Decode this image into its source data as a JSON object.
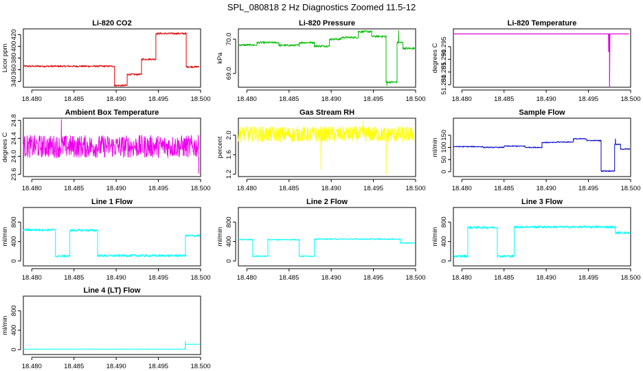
{
  "title": "SPL_080818  2 Hz Diagnostics Zoomed 11.5-12",
  "chart_data": [
    {
      "id": "co2",
      "type": "line",
      "title": "Li-820 CO2",
      "ylabel": "Licor ppm",
      "color": "#dd0000",
      "xlim": [
        18.479,
        18.5
      ],
      "ylim": [
        330,
        430
      ],
      "xticks": [
        "18.480",
        "18.485",
        "18.490",
        "18.495",
        "18.500"
      ],
      "yticks": [
        {
          "v": 340,
          "label": "340"
        },
        {
          "v": 360,
          "label": "360"
        },
        {
          "v": 380,
          "label": "380"
        },
        {
          "v": 400,
          "label": "400"
        },
        {
          "v": 420,
          "label": "420"
        }
      ],
      "noise": 1.5,
      "segments": [
        [
          18.479,
          18.4898,
          366
        ],
        [
          18.4898,
          18.4913,
          333
        ],
        [
          18.4913,
          18.493,
          352
        ],
        [
          18.493,
          18.4947,
          378
        ],
        [
          18.4947,
          18.4983,
          422
        ],
        [
          18.4983,
          18.4998,
          365
        ]
      ],
      "spikes": []
    },
    {
      "id": "pressure",
      "type": "line",
      "title": "Li-820 Pressure",
      "ylabel": "kPa",
      "color": "#00bb00",
      "xlim": [
        18.479,
        18.5
      ],
      "ylim": [
        68.6,
        70.3
      ],
      "xticks": [
        "18.480",
        "18.485",
        "18.490",
        "18.495",
        "18.500"
      ],
      "yticks": [
        {
          "v": 69.0,
          "label": "69.0"
        },
        {
          "v": 70.0,
          "label": "70.0"
        }
      ],
      "noise": 0.03,
      "segments": [
        [
          18.479,
          18.4812,
          69.83
        ],
        [
          18.4812,
          18.4838,
          69.9
        ],
        [
          18.4838,
          18.4862,
          69.82
        ],
        [
          18.4862,
          18.488,
          69.9
        ],
        [
          18.488,
          18.4898,
          69.8
        ],
        [
          18.4898,
          18.4912,
          70.0
        ],
        [
          18.4912,
          18.4932,
          70.05
        ],
        [
          18.4932,
          18.4948,
          70.22
        ],
        [
          18.4948,
          18.4965,
          70.08
        ],
        [
          18.4965,
          18.4978,
          68.75
        ],
        [
          18.4978,
          18.4985,
          69.9
        ],
        [
          18.4985,
          18.4999,
          69.73
        ]
      ],
      "spikes": [
        [
          18.4966,
          68.65
        ],
        [
          18.498,
          70.25
        ]
      ]
    },
    {
      "id": "temp",
      "type": "line",
      "title": "Li-820 Temperature",
      "ylabel": "degrees C",
      "color": "#dd00dd",
      "xlim": [
        18.479,
        18.5
      ],
      "ylim": [
        51.279,
        51.302
      ],
      "xticks": [
        "18.480",
        "18.485",
        "18.490",
        "18.495",
        "18.500"
      ],
      "yticks": [
        {
          "v": 51.28,
          "label": "51.280"
        },
        {
          "v": 51.285,
          "label": "51.285"
        },
        {
          "v": 51.29,
          "label": "51.290"
        },
        {
          "v": 51.295,
          "label": "51.295"
        }
      ],
      "noise": 0.0,
      "segments": [
        [
          18.479,
          18.4998,
          51.3
        ]
      ],
      "spikes": [
        [
          18.4974,
          51.293
        ],
        [
          18.4975,
          51.279
        ]
      ]
    },
    {
      "id": "ambient",
      "type": "line",
      "title": "Ambient Box Temperature",
      "ylabel": "degrees C",
      "color": "#ee00ee",
      "xlim": [
        18.479,
        18.5
      ],
      "ylim": [
        23.55,
        24.85
      ],
      "xticks": [
        "18.480",
        "18.485",
        "18.490",
        "18.495",
        "18.500"
      ],
      "yticks": [
        {
          "v": 23.6,
          "label": "23.6"
        },
        {
          "v": 24.0,
          "label": "24.0"
        },
        {
          "v": 24.4,
          "label": "24.4"
        },
        {
          "v": 24.8,
          "label": "24.8"
        }
      ],
      "noise": 0.25,
      "segments": [
        [
          18.479,
          18.4998,
          24.22
        ]
      ],
      "spikes": [
        [
          18.4835,
          24.82
        ],
        [
          18.4998,
          23.62
        ]
      ]
    },
    {
      "id": "rh",
      "type": "line",
      "title": "Gas Stream RH",
      "ylabel": "percent",
      "color": "#ffff00",
      "xlim": [
        18.479,
        18.5
      ],
      "ylim": [
        1.15,
        2.35
      ],
      "xticks": [
        "18.480",
        "18.485",
        "18.490",
        "18.495",
        "18.500"
      ],
      "yticks": [
        {
          "v": 1.2,
          "label": "1.2"
        },
        {
          "v": 1.6,
          "label": "1.6"
        },
        {
          "v": 2.0,
          "label": "2.0"
        }
      ],
      "noise": 0.16,
      "segments": [
        [
          18.479,
          18.4998,
          2.02
        ]
      ],
      "spikes": [
        [
          18.4888,
          1.3
        ],
        [
          18.4965,
          1.2
        ],
        [
          18.4938,
          2.3
        ]
      ]
    },
    {
      "id": "sample",
      "type": "line",
      "title": "Sample Flow",
      "ylabel": "ml/min",
      "color": "#0000cc",
      "xlim": [
        18.479,
        18.5
      ],
      "ylim": [
        -20,
        220
      ],
      "xticks": [
        "18.480",
        "18.485",
        "18.490",
        "18.495",
        "18.500"
      ],
      "yticks": [
        {
          "v": 0,
          "label": "0"
        },
        {
          "v": 50,
          "label": "50"
        },
        {
          "v": 100,
          "label": "100"
        },
        {
          "v": 150,
          "label": "150"
        }
      ],
      "noise": 2,
      "segments": [
        [
          18.479,
          18.4825,
          103
        ],
        [
          18.4825,
          18.485,
          100
        ],
        [
          18.485,
          18.4875,
          105
        ],
        [
          18.4875,
          18.4895,
          100
        ],
        [
          18.4895,
          18.4912,
          120
        ],
        [
          18.4912,
          18.4932,
          122
        ],
        [
          18.4932,
          18.4948,
          135
        ],
        [
          18.4948,
          18.4965,
          128
        ],
        [
          18.4965,
          18.4981,
          3
        ],
        [
          18.4981,
          18.4988,
          112
        ],
        [
          18.4988,
          18.4999,
          93
        ]
      ],
      "spikes": [
        [
          18.4982,
          135
        ]
      ]
    },
    {
      "id": "line1",
      "type": "line",
      "title": "Line 1 Flow",
      "ylabel": "ml/min",
      "color": "#00ffff",
      "xlim": [
        18.479,
        18.5
      ],
      "ylim": [
        -100,
        1100
      ],
      "xticks": [
        "18.480",
        "18.485",
        "18.490",
        "18.495",
        "18.500"
      ],
      "yticks": [
        {
          "v": 0,
          "label": "0"
        },
        {
          "v": 400,
          "label": "400"
        },
        {
          "v": 800,
          "label": "800"
        }
      ],
      "noise": 25,
      "segments": [
        [
          18.479,
          18.4828,
          640
        ],
        [
          18.4828,
          18.4845,
          100
        ],
        [
          18.4845,
          18.4878,
          630
        ],
        [
          18.4878,
          18.4982,
          110
        ],
        [
          18.4982,
          18.4999,
          520
        ]
      ],
      "spikes": []
    },
    {
      "id": "line2",
      "type": "line",
      "title": "Line 2 Flow",
      "ylabel": "ml/min",
      "color": "#00ffff",
      "xlim": [
        18.479,
        18.5
      ],
      "ylim": [
        -100,
        1100
      ],
      "xticks": [
        "18.480",
        "18.485",
        "18.490",
        "18.495",
        "18.500"
      ],
      "yticks": [
        {
          "v": 0,
          "label": "0"
        },
        {
          "v": 400,
          "label": "400"
        },
        {
          "v": 800,
          "label": "800"
        }
      ],
      "noise": 12,
      "segments": [
        [
          18.479,
          18.4807,
          440
        ],
        [
          18.4807,
          18.4825,
          100
        ],
        [
          18.4825,
          18.4862,
          440
        ],
        [
          18.4862,
          18.488,
          100
        ],
        [
          18.488,
          18.4982,
          450
        ],
        [
          18.4982,
          18.4999,
          370
        ]
      ],
      "spikes": []
    },
    {
      "id": "line3",
      "type": "line",
      "title": "Line 3 Flow",
      "ylabel": "ml/min",
      "color": "#00ffff",
      "xlim": [
        18.479,
        18.5
      ],
      "ylim": [
        -100,
        1100
      ],
      "xticks": [
        "18.480",
        "18.485",
        "18.490",
        "18.495",
        "18.500"
      ],
      "yticks": [
        {
          "v": 0,
          "label": "0"
        },
        {
          "v": 400,
          "label": "400"
        },
        {
          "v": 800,
          "label": "800"
        }
      ],
      "noise": 25,
      "segments": [
        [
          18.479,
          18.4807,
          100
        ],
        [
          18.4807,
          18.4842,
          690
        ],
        [
          18.4842,
          18.4862,
          100
        ],
        [
          18.4862,
          18.4982,
          700
        ],
        [
          18.4982,
          18.4999,
          580
        ]
      ],
      "spikes": []
    },
    {
      "id": "line4",
      "type": "line",
      "title": "Line 4 (LT) Flow",
      "ylabel": "ml/min",
      "color": "#00ffff",
      "xlim": [
        18.479,
        18.5
      ],
      "ylim": [
        -100,
        1100
      ],
      "xticks": [
        "18.480",
        "18.485",
        "18.490",
        "18.495",
        "18.500"
      ],
      "yticks": [
        {
          "v": 0,
          "label": "0"
        },
        {
          "v": 400,
          "label": "400"
        },
        {
          "v": 800,
          "label": "800"
        }
      ],
      "noise": 4,
      "segments": [
        [
          18.479,
          18.4982,
          10
        ],
        [
          18.4982,
          18.4999,
          110
        ]
      ],
      "spikes": [
        [
          18.4982,
          180
        ]
      ]
    }
  ]
}
